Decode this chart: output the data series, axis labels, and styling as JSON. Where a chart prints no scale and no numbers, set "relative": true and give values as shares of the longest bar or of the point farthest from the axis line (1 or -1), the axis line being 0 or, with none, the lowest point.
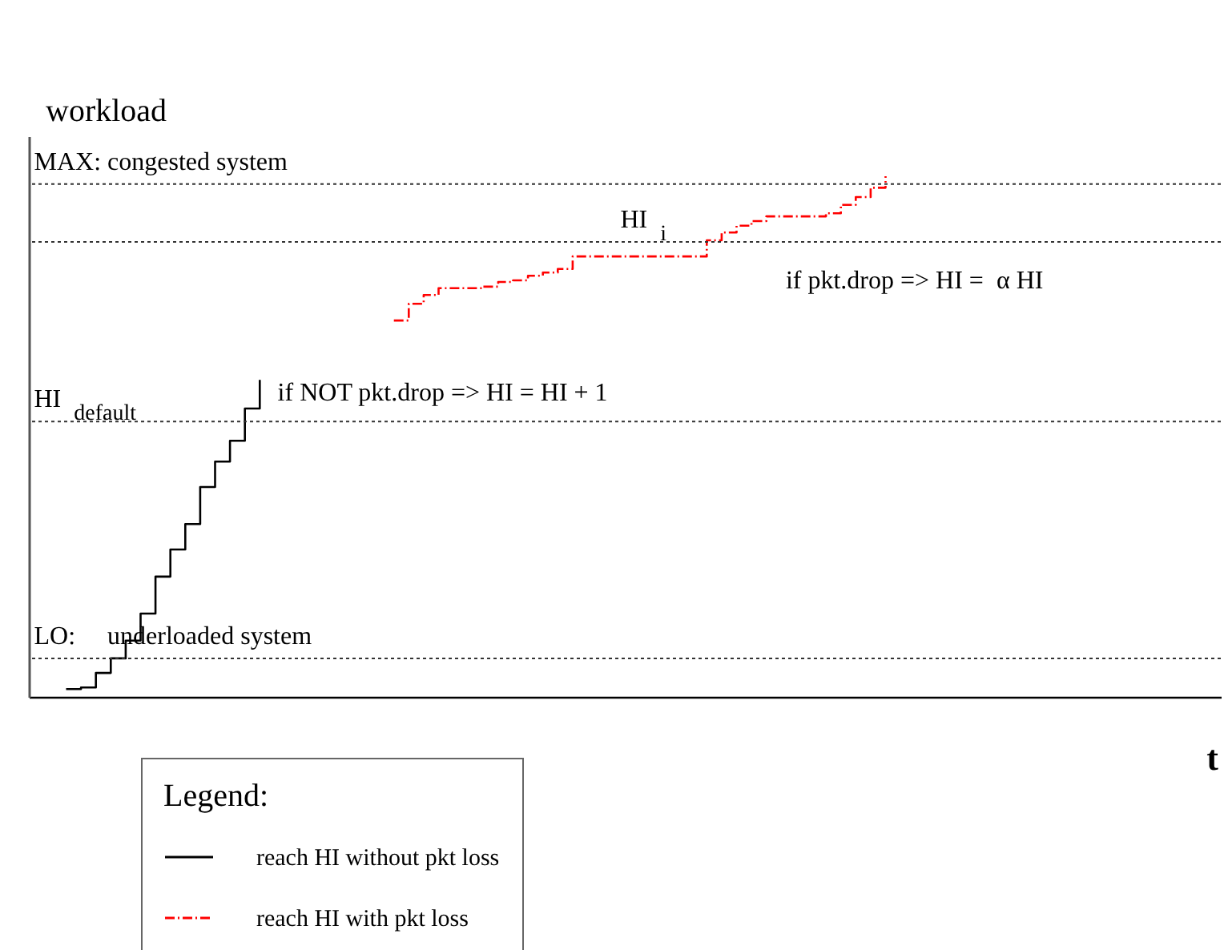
{
  "chart_data": {
    "type": "step",
    "relative": true,
    "ylabel": "workload",
    "xlabel": "t",
    "legend_title": "Legend:",
    "legend": "bottom",
    "marker": "none",
    "grid": false,
    "tick_labels": false,
    "categories": [
      null,
      null,
      null,
      null,
      null,
      null,
      null,
      null,
      null,
      null,
      null,
      null,
      null,
      null,
      null,
      null,
      null,
      null,
      null,
      null,
      null,
      null,
      null,
      null,
      null,
      null,
      null,
      null,
      null,
      null,
      null,
      null,
      null,
      null,
      null,
      null,
      null,
      null,
      null,
      null,
      null,
      null,
      null,
      null,
      null,
      null,
      null,
      null,
      null,
      null,
      null,
      null,
      null,
      null,
      null,
      null,
      null,
      null,
      null,
      null,
      null,
      null,
      null,
      null,
      null,
      null,
      null,
      null,
      null,
      null,
      null,
      null,
      null,
      null,
      null,
      null,
      null,
      null,
      null,
      null
    ],
    "series": [
      {
        "name": "reach HI without pkt loss",
        "color": "#000000",
        "line_style": "solid",
        "values": [
          null,
          null,
          0.015,
          0.018,
          0.046,
          0.074,
          0.108,
          0.16,
          0.231,
          0.283,
          0.332,
          0.403,
          0.452,
          0.492,
          0.554,
          0.609,
          null,
          null,
          null,
          null,
          null,
          null,
          null,
          null,
          null,
          null,
          null,
          null,
          null,
          null,
          null,
          null,
          null,
          null,
          null,
          null,
          null,
          null,
          null,
          null,
          null,
          null,
          null,
          null,
          null,
          null,
          null,
          null,
          null,
          null,
          null,
          null,
          null,
          null,
          null,
          null,
          null,
          null,
          null,
          null,
          null,
          null,
          null,
          null,
          null,
          null,
          null,
          null,
          null,
          null,
          null,
          null,
          null,
          null,
          null,
          null,
          null,
          null,
          null,
          null
        ]
      },
      {
        "name": "reach HI with pkt loss",
        "color": "#ff0000",
        "line_style": "dashed",
        "values": [
          null,
          null,
          null,
          null,
          null,
          null,
          null,
          null,
          null,
          null,
          null,
          null,
          null,
          null,
          null,
          null,
          null,
          null,
          null,
          null,
          null,
          null,
          null,
          null,
          0.723,
          0.755,
          0.772,
          0.785,
          0.785,
          0.785,
          0.788,
          0.797,
          0.8,
          0.809,
          0.815,
          0.822,
          0.846,
          0.846,
          0.846,
          0.846,
          0.846,
          0.846,
          0.846,
          0.846,
          0.846,
          0.877,
          0.892,
          0.905,
          0.914,
          0.923,
          0.923,
          0.923,
          0.923,
          0.929,
          0.945,
          0.96,
          0.978,
          1.0,
          null,
          null,
          null,
          null,
          null,
          null,
          null,
          null,
          null,
          null,
          null,
          null,
          null,
          null,
          null,
          null,
          null,
          null,
          null,
          null,
          null,
          null
        ]
      }
    ],
    "ref_lines": [
      {
        "axis": "y",
        "value": 0.985,
        "label": "MAX: congested system",
        "line_style": "dotted"
      },
      {
        "axis": "y",
        "value": 0.874,
        "label": "HI $_{i}$",
        "line_style": "dotted"
      },
      {
        "axis": "y",
        "value": 0.529,
        "label": "HI $_{default}$",
        "line_style": "dotted"
      },
      {
        "axis": "y",
        "value": 0.074,
        "label": "LO:     underloaded system",
        "line_style": "dotted"
      }
    ],
    "annotations": [
      "if NOT pkt.drop => HI = HI + 1",
      "if pkt.drop => HI =  α HI"
    ]
  }
}
